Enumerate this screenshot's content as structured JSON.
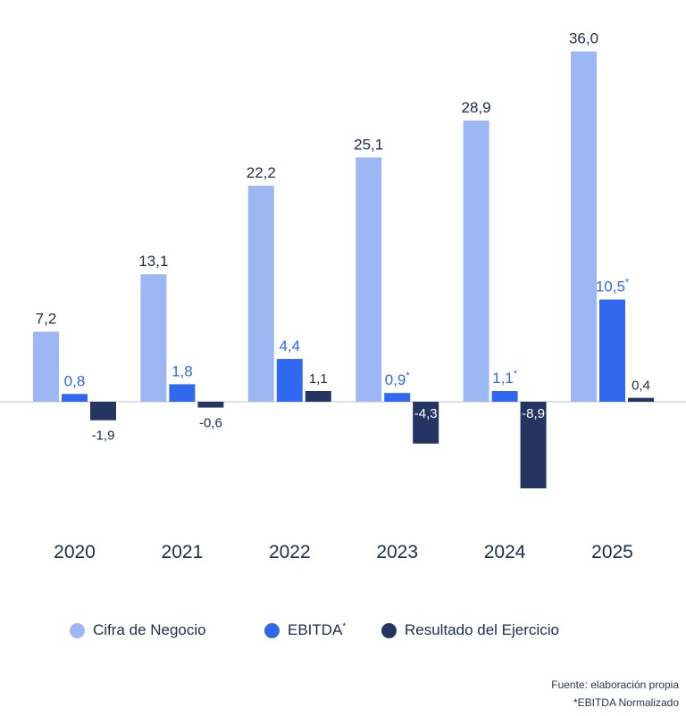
{
  "chart_data": {
    "type": "bar",
    "categories": [
      "2020",
      "2021",
      "2022",
      "2023",
      "2024",
      "2025"
    ],
    "series": [
      {
        "name": "Cifra de Negocio",
        "color": "#9db7f5",
        "label_color": "#1f2c48",
        "values": [
          7.2,
          13.1,
          22.2,
          25.1,
          28.9,
          36.0
        ],
        "labels": [
          "7,2",
          "13,1",
          "22,2",
          "25,1",
          "28,9",
          "36,0"
        ],
        "asterisk": [
          false,
          false,
          false,
          false,
          false,
          false
        ]
      },
      {
        "name": "EBITDA",
        "color": "#3068f0",
        "label_color": "#3068f0",
        "values": [
          0.8,
          1.8,
          4.4,
          0.9,
          1.1,
          10.5
        ],
        "labels": [
          "0,8",
          "1,8",
          "4,4",
          "0,9",
          "1,1",
          "10,5"
        ],
        "asterisk": [
          false,
          false,
          false,
          true,
          true,
          true
        ]
      },
      {
        "name": "Resultado del Ejercicio",
        "color": "#233560",
        "label_color": "#1f2c48",
        "values": [
          -1.9,
          -0.6,
          1.1,
          -4.3,
          -8.9,
          0.4
        ],
        "labels": [
          "-1,9",
          "-0,6",
          "1,1",
          "-4,3",
          "-8,9",
          "0,4"
        ],
        "asterisk": [
          false,
          false,
          false,
          false,
          false,
          false
        ]
      }
    ],
    "ylim": [
      -9.5,
      37.5
    ],
    "grid": false,
    "legend_position": "bottom"
  },
  "legend": {
    "items": [
      {
        "label": "Cifra de Negocio",
        "color": "#9db7f5",
        "sup": ""
      },
      {
        "label": "EBITDA",
        "color": "#3068f0",
        "sup": "*"
      },
      {
        "label": "Resultado del Ejercicio",
        "color": "#233560",
        "sup": ""
      }
    ]
  },
  "footnotes": {
    "source": "Fuente: elaboración propia",
    "note": "*EBITDA Normalizado"
  }
}
